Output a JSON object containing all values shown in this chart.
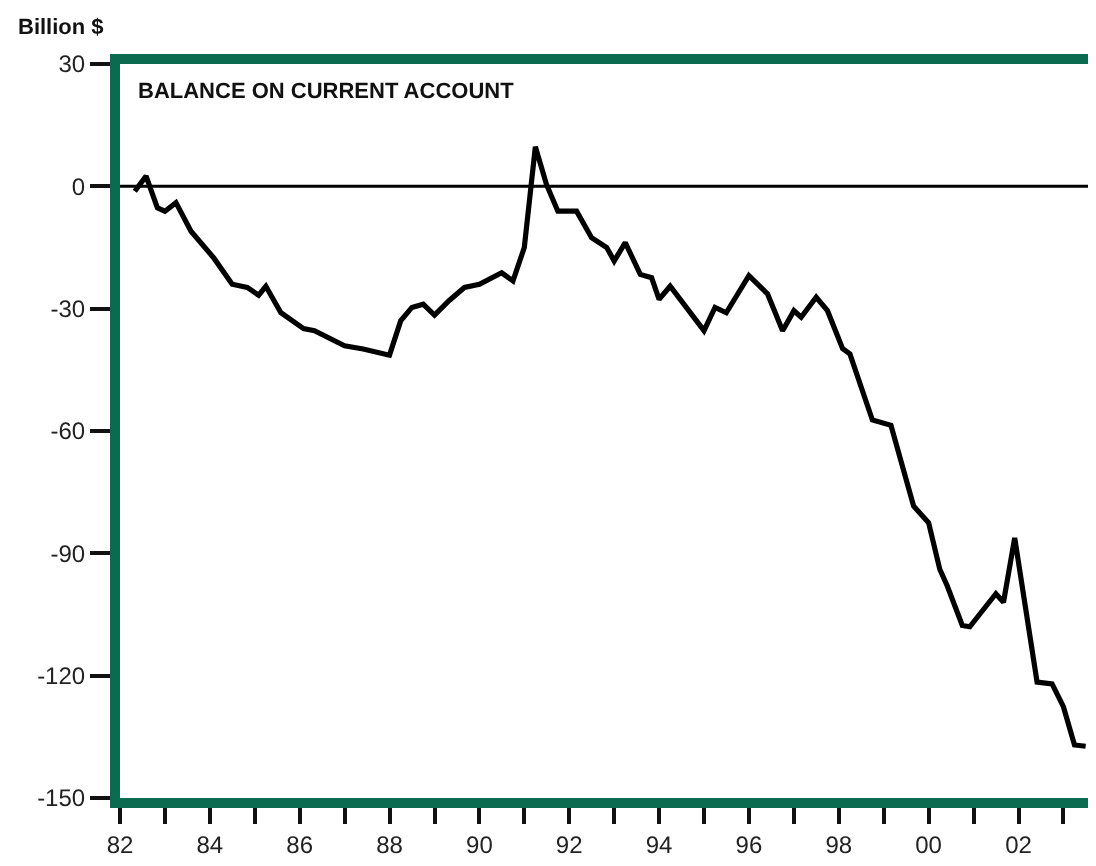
{
  "chart_data": {
    "type": "line",
    "title": "BALANCE ON CURRENT ACCOUNT",
    "ylabel": "Billion $",
    "x": [
      "1982-05",
      "1982-08",
      "1982-11",
      "1983-01",
      "1983-04",
      "1983-08",
      "1984-02",
      "1984-07",
      "1984-11",
      "1985-02",
      "1985-04",
      "1985-08",
      "1986-02",
      "1986-05",
      "1987-01",
      "1987-06",
      "1988-01",
      "1988-04",
      "1988-07",
      "1988-10",
      "1989-01",
      "1989-05",
      "1989-09",
      "1990-01",
      "1990-07",
      "1990-10",
      "1991-01",
      "1991-04",
      "1991-07",
      "1991-10",
      "1992-03",
      "1992-07",
      "1992-11",
      "1993-01",
      "1993-04",
      "1993-08",
      "1993-11",
      "1994-01",
      "1994-04",
      "1995-01",
      "1995-04",
      "1995-07",
      "1996-01",
      "1996-06",
      "1996-10",
      "1997-01",
      "1997-03",
      "1997-07",
      "1997-10",
      "1998-02",
      "1998-04",
      "1998-10",
      "1999-03",
      "1999-09",
      "2000-01",
      "2000-04",
      "2000-06",
      "2000-10",
      "2000-12",
      "2001-07",
      "2001-09",
      "2001-12",
      "2002-06",
      "2002-10",
      "2003-01",
      "2003-04",
      "2003-07"
    ],
    "series": [
      {
        "color": "#000000",
        "values": [
          -1.2,
          2.5,
          -5.3,
          -6.1,
          -4,
          -11,
          -17.5,
          -24,
          -24.8,
          -26.7,
          -24.5,
          -31,
          -34.9,
          -35.4,
          -39.1,
          -39.9,
          -41.4,
          -33,
          -29.7,
          -28.9,
          -31.6,
          -28,
          -24.8,
          -24,
          -21.2,
          -23.2,
          -15,
          9.7,
          0.4,
          -6.1,
          -6.1,
          -12.6,
          -15,
          -18.3,
          -13.8,
          -21.6,
          -22.4,
          -27.7,
          -24.5,
          -35.4,
          -29.7,
          -31,
          -21.9,
          -26.4,
          -35.4,
          -30.5,
          -32.1,
          -27.2,
          -30.5,
          -39.8,
          -41.1,
          -57.3,
          -58.6,
          -78.4,
          -82.5,
          -93.9,
          -98,
          -107.7,
          -108,
          -99.9,
          -102,
          -86.2,
          -121.6,
          -122,
          -127.6,
          -137,
          -137.3
        ]
      }
    ],
    "xlim": [
      "1982-01-01",
      "2003-07-20"
    ],
    "xticks": [
      {
        "value": "1982",
        "label": "82"
      },
      {
        "value": "1983",
        "label": null
      },
      {
        "value": "1984",
        "label": "84"
      },
      {
        "value": "1985",
        "label": null
      },
      {
        "value": "1986",
        "label": "86"
      },
      {
        "value": "1987",
        "label": null
      },
      {
        "value": "1988",
        "label": "88"
      },
      {
        "value": "1989",
        "label": null
      },
      {
        "value": "1990",
        "label": "90"
      },
      {
        "value": "1991",
        "label": null
      },
      {
        "value": "1992",
        "label": "92"
      },
      {
        "value": "1993",
        "label": null
      },
      {
        "value": "1994",
        "label": "94"
      },
      {
        "value": "1995",
        "label": null
      },
      {
        "value": "1996",
        "label": "96"
      },
      {
        "value": "1997",
        "label": null
      },
      {
        "value": "1998",
        "label": "98"
      },
      {
        "value": "1999",
        "label": null
      },
      {
        "value": "2000",
        "label": "00"
      },
      {
        "value": "2001",
        "label": null
      },
      {
        "value": "2002",
        "label": "02"
      },
      {
        "value": "2003",
        "label": null
      }
    ],
    "ylim": [
      -150,
      30
    ],
    "yticks": [
      30,
      0,
      -30,
      -60,
      -90,
      -120,
      -150
    ],
    "ref_lines": [
      {
        "axis": "y",
        "value": 0,
        "color": "#000000"
      }
    ],
    "marker": "none",
    "line_style": "solid"
  }
}
